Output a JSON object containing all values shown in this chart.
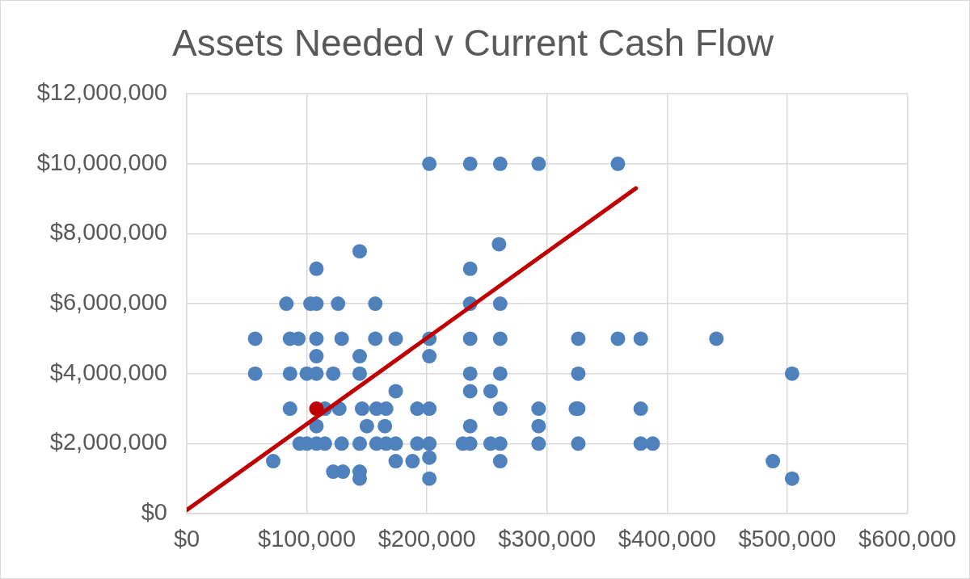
{
  "chart_data": {
    "type": "scatter",
    "title": "Assets Needed v Current Cash Flow",
    "xlim": [
      0,
      600000
    ],
    "xticks": [
      {
        "value": 0,
        "label": "$0"
      },
      {
        "value": 100000,
        "label": "$100,000"
      },
      {
        "value": 200000,
        "label": "$200,000"
      },
      {
        "value": 300000,
        "label": "$300,000"
      },
      {
        "value": 400000,
        "label": "$400,000"
      },
      {
        "value": 500000,
        "label": "$500,000"
      },
      {
        "value": 600000,
        "label": "$600,000"
      }
    ],
    "ylim": [
      0,
      12000000
    ],
    "yticks": [
      {
        "value": 0,
        "label": "$0"
      },
      {
        "value": 2000000,
        "label": "$2,000,000"
      },
      {
        "value": 4000000,
        "label": "$4,000,000"
      },
      {
        "value": 6000000,
        "label": "$6,000,000"
      },
      {
        "value": 8000000,
        "label": "$8,000,000"
      },
      {
        "value": 10000000,
        "label": "$10,000,000"
      },
      {
        "value": 12000000,
        "label": "$12,000,000"
      }
    ],
    "grid": true,
    "marker": "circle",
    "series": [
      {
        "color": "#4f81bd",
        "x": [
          202000,
          236000,
          261000,
          293000,
          359000,
          260000,
          144000,
          108000,
          236000,
          83000,
          103000,
          108000,
          126000,
          157000,
          236000,
          261000,
          57000,
          86000,
          93000,
          108000,
          129000,
          157000,
          174000,
          202000,
          236000,
          261000,
          326000,
          359000,
          378000,
          441000,
          108000,
          144000,
          202000,
          57000,
          86000,
          100000,
          108000,
          122000,
          144000,
          236000,
          261000,
          326000,
          504000,
          174000,
          236000,
          253000,
          86000,
          115000,
          127000,
          146000,
          158000,
          166000,
          192000,
          202000,
          261000,
          293000,
          324000,
          326000,
          378000,
          108000,
          150000,
          165000,
          236000,
          293000,
          94000,
          100000,
          108000,
          115000,
          129000,
          144000,
          158000,
          166000,
          174000,
          192000,
          202000,
          230000,
          236000,
          253000,
          261000,
          293000,
          326000,
          378000,
          388000,
          202000,
          72000,
          174000,
          188000,
          261000,
          488000,
          122000,
          130000,
          144000,
          144000,
          202000,
          504000
        ],
        "values": [
          10000000,
          10000000,
          10000000,
          10000000,
          10000000,
          7700000,
          7500000,
          7000000,
          7000000,
          6000000,
          6000000,
          6000000,
          6000000,
          6000000,
          6000000,
          6000000,
          5000000,
          5000000,
          5000000,
          5000000,
          5000000,
          5000000,
          5000000,
          5000000,
          5000000,
          5000000,
          5000000,
          5000000,
          5000000,
          5000000,
          4500000,
          4500000,
          4500000,
          4000000,
          4000000,
          4000000,
          4000000,
          4000000,
          4000000,
          4000000,
          4000000,
          4000000,
          4000000,
          3500000,
          3500000,
          3500000,
          3000000,
          3000000,
          3000000,
          3000000,
          3000000,
          3000000,
          3000000,
          3000000,
          3000000,
          3000000,
          3000000,
          3000000,
          3000000,
          2500000,
          2500000,
          2500000,
          2500000,
          2500000,
          2000000,
          2000000,
          2000000,
          2000000,
          2000000,
          2000000,
          2000000,
          2000000,
          2000000,
          2000000,
          2000000,
          2000000,
          2000000,
          2000000,
          2000000,
          2000000,
          2000000,
          2000000,
          2000000,
          1600000,
          1500000,
          1500000,
          1500000,
          1500000,
          1500000,
          1200000,
          1200000,
          1200000,
          1000000,
          1000000,
          1000000
        ]
      },
      {
        "color": "#c00000",
        "x": [
          108000
        ],
        "values": [
          3000000
        ]
      },
      {
        "type": "line",
        "color": "#c00000",
        "marker": "none",
        "line_style": "solid",
        "x": [
          0,
          374000
        ],
        "values": [
          100000,
          9300000
        ]
      }
    ]
  }
}
